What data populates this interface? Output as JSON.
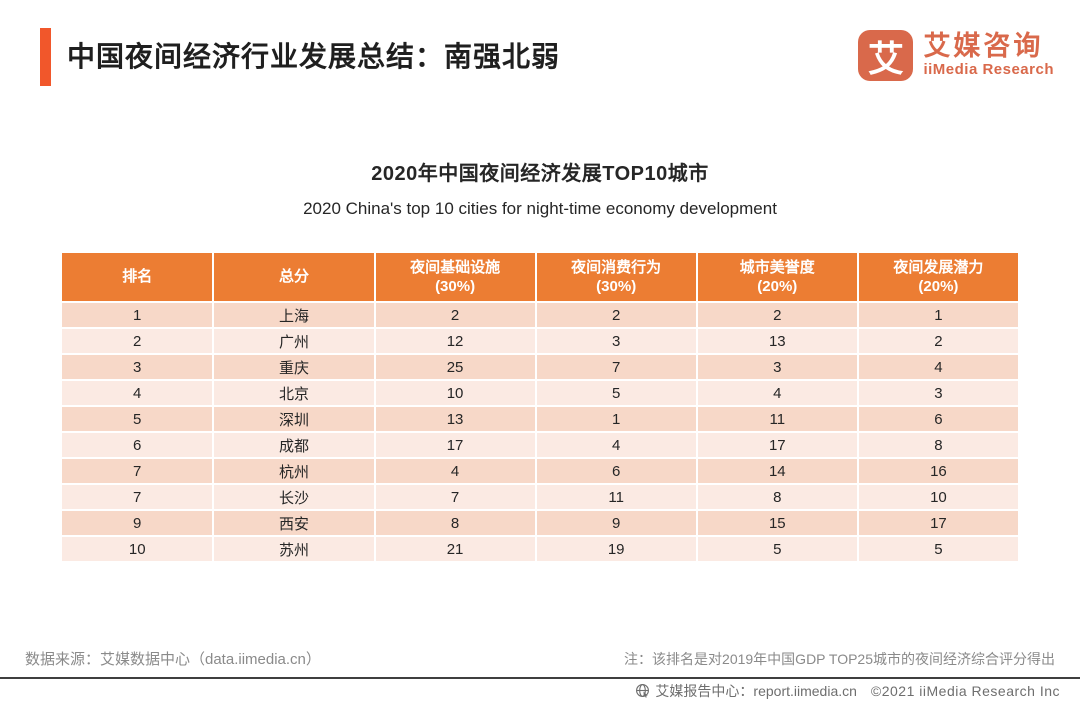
{
  "header": {
    "title": "中国夜间经济行业发展总结：南强北弱",
    "logo": {
      "mark_glyph": "艾",
      "name_cn": "艾媒咨询",
      "name_en": "iiMedia Research"
    }
  },
  "chart": {
    "title_cn": "2020年中国夜间经济发展TOP10城市",
    "title_en": "2020 China's top 10 cities for night-time economy development"
  },
  "table": {
    "columns": [
      {
        "label": "排名",
        "sub": ""
      },
      {
        "label": "总分",
        "sub": ""
      },
      {
        "label": "夜间基础设施",
        "sub": "(30%)"
      },
      {
        "label": "夜间消费行为",
        "sub": "(30%)"
      },
      {
        "label": "城市美誉度",
        "sub": "(20%)"
      },
      {
        "label": "夜间发展潜力",
        "sub": "(20%)"
      }
    ],
    "rows": [
      [
        "1",
        "上海",
        "2",
        "2",
        "2",
        "1"
      ],
      [
        "2",
        "广州",
        "12",
        "3",
        "13",
        "2"
      ],
      [
        "3",
        "重庆",
        "25",
        "7",
        "3",
        "4"
      ],
      [
        "4",
        "北京",
        "10",
        "5",
        "4",
        "3"
      ],
      [
        "5",
        "深圳",
        "13",
        "1",
        "11",
        "6"
      ],
      [
        "6",
        "成都",
        "17",
        "4",
        "17",
        "8"
      ],
      [
        "7",
        "杭州",
        "4",
        "6",
        "14",
        "16"
      ],
      [
        "7",
        "长沙",
        "7",
        "11",
        "8",
        "10"
      ],
      [
        "9",
        "西安",
        "8",
        "9",
        "15",
        "17"
      ],
      [
        "10",
        "苏州",
        "21",
        "19",
        "5",
        "5"
      ]
    ]
  },
  "footer": {
    "source": "数据来源：艾媒数据中心（data.iimedia.cn）",
    "note": "注：该排名是对2019年中国GDP TOP25城市的夜间经济综合评分得出",
    "bottom_bar": {
      "report_center": "艾媒报告中心：report.iimedia.cn",
      "copyright": "©2021  iiMedia Research Inc"
    }
  },
  "colors": {
    "accent_bar": "#F1572B",
    "table_header_bg": "#EC7D33",
    "row_dark": "#F7D8C8",
    "row_light": "#FBEAE3",
    "logo_orange": "#D9694B",
    "footer_gray": "#8A8A8A",
    "divider_dark": "#3F3F3F"
  }
}
